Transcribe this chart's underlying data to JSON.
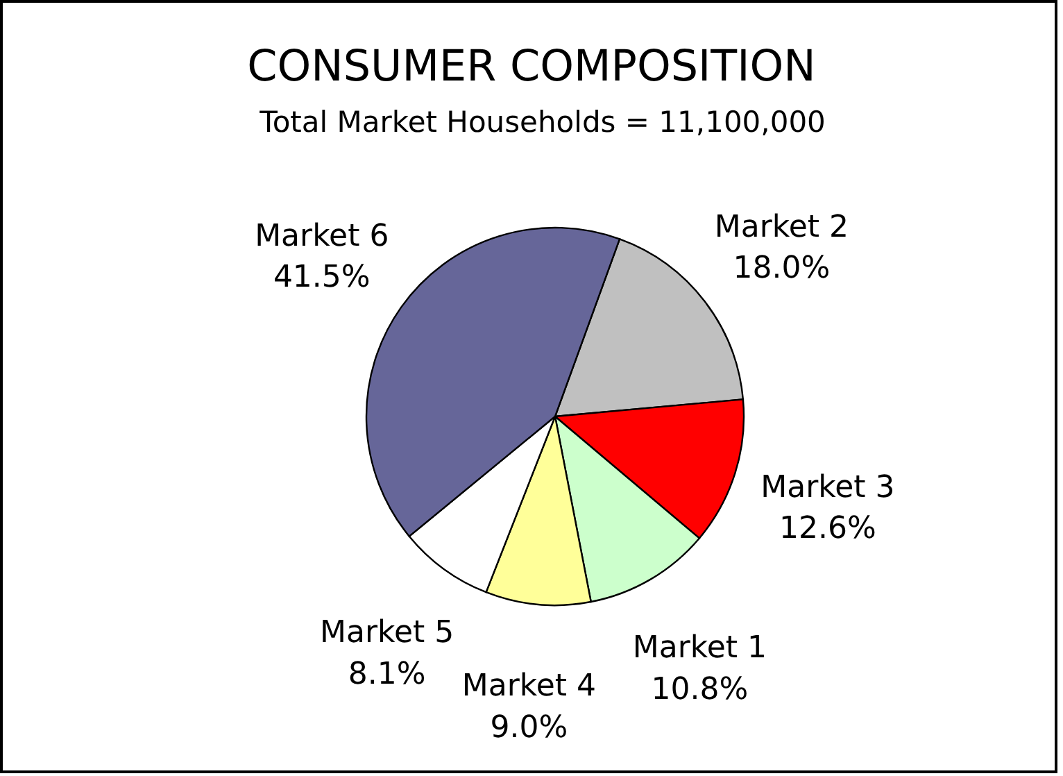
{
  "chart_data": {
    "type": "pie",
    "title": "CONSUMER COMPOSITION",
    "subtitle": "Total Market Households = 11,100,000",
    "categories": [
      "Market 2",
      "Market 3",
      "Market 1",
      "Market 4",
      "Market 5",
      "Market 6"
    ],
    "values": [
      18.0,
      12.6,
      10.8,
      9.0,
      8.1,
      41.5
    ],
    "colors": [
      "#c0c0c0",
      "#ff0000",
      "#ccffcc",
      "#ffff99",
      "#ffffff",
      "#666699"
    ],
    "value_labels": [
      "18.0%",
      "12.6%",
      "10.8%",
      "9.0%",
      "8.1%",
      "41.5%"
    ]
  }
}
